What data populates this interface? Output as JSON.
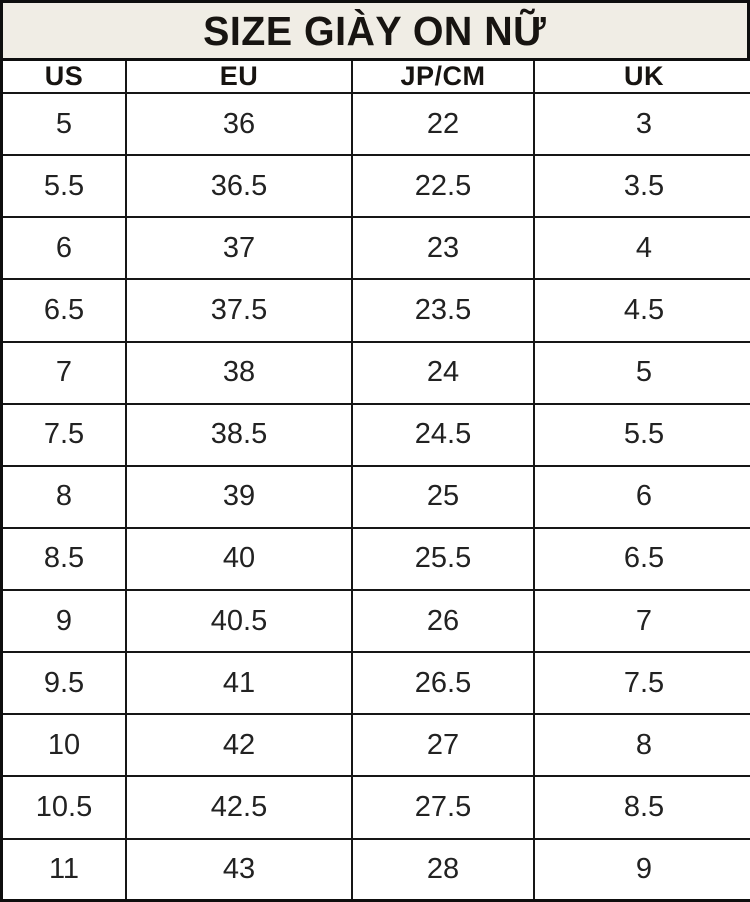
{
  "page_title": "SIZE GIÀY ON NỮ",
  "colors": {
    "title_background": "#f0ede5",
    "border": "#0e0e0e",
    "cell_background": "#ffffff",
    "text": "#1a1a1a"
  },
  "chart_data": {
    "type": "table",
    "title": "SIZE GIÀY ON NỮ",
    "columns": [
      "US",
      "EU",
      "JP/CM",
      "UK"
    ],
    "rows": [
      [
        "5",
        "36",
        "22",
        "3"
      ],
      [
        "5.5",
        "36.5",
        "22.5",
        "3.5"
      ],
      [
        "6",
        "37",
        "23",
        "4"
      ],
      [
        "6.5",
        "37.5",
        "23.5",
        "4.5"
      ],
      [
        "7",
        "38",
        "24",
        "5"
      ],
      [
        "7.5",
        "38.5",
        "24.5",
        "5.5"
      ],
      [
        "8",
        "39",
        "25",
        "6"
      ],
      [
        "8.5",
        "40",
        "25.5",
        "6.5"
      ],
      [
        "9",
        "40.5",
        "26",
        "7"
      ],
      [
        "9.5",
        "41",
        "26.5",
        "7.5"
      ],
      [
        "10",
        "42",
        "27",
        "8"
      ],
      [
        "10.5",
        "42.5",
        "27.5",
        "8.5"
      ],
      [
        "11",
        "43",
        "28",
        "9"
      ]
    ]
  }
}
